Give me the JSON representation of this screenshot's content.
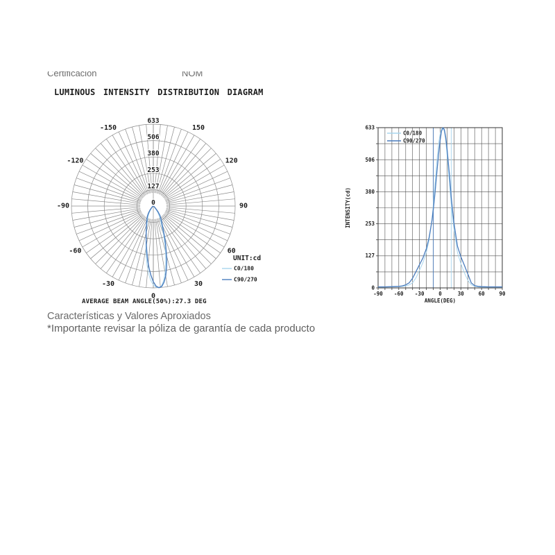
{
  "page": {
    "header_left": "Certificación",
    "header_right": "NOM",
    "title": "LUMINOUS INTENSITY DISTRIBUTION DIAGRAM",
    "footer_note_1": "Características y Valores Aproxiados",
    "footer_note_2": "*Importante revisar la póliza de garantía de cada producto"
  },
  "polar_chart": {
    "unit_label": "UNIT:cd",
    "annotation": "AVERAGE BEAM ANGLE(50%):27.3 DEG"
  },
  "colors": {
    "c0_180": "#a8d5ee",
    "c90_270": "#4a7cbd",
    "polar_grid": "#8a8a8a",
    "cart_grid": "#4f4f4f",
    "cart_border": "#333333",
    "chart_text": "#1c1c1c",
    "muted_text": "#6a6a6a"
  },
  "chart_data": [
    {
      "type": "polar-line",
      "title": "LUMINOUS INTENSITY DISTRIBUTION DIAGRAM",
      "unit": "cd",
      "orientation": "0 deg at bottom, positive angles to the right",
      "radial_ticks": [
        0,
        127,
        253,
        380,
        506,
        633
      ],
      "angle_tick_labels": [
        -150,
        -120,
        -90,
        -60,
        -30,
        0,
        30,
        60,
        90,
        120,
        150
      ],
      "angle_step_deg": 5,
      "annotation": "AVERAGE BEAM ANGLE(50%):27.3 DEG",
      "x_deg": [
        -90,
        -80,
        -70,
        -60,
        -55,
        -50,
        -45,
        -40,
        -35,
        -30,
        -25,
        -20,
        -16,
        -12,
        -10,
        -8,
        -6,
        -4,
        -2,
        0,
        2,
        4,
        6,
        8,
        10,
        12,
        14,
        16,
        18,
        20,
        25,
        30,
        35,
        40,
        45,
        50,
        55,
        60,
        70,
        80,
        90
      ],
      "series": [
        {
          "name": "C0/180",
          "color": "#a8d5ee",
          "values": [
            3,
            3,
            4,
            5,
            6,
            8,
            12,
            20,
            40,
            70,
            100,
            140,
            190,
            270,
            330,
            395,
            460,
            525,
            575,
            610,
            628,
            632,
            618,
            580,
            525,
            460,
            395,
            330,
            275,
            230,
            140,
            95,
            60,
            30,
            12,
            6,
            4,
            3,
            3,
            3,
            3
          ]
        },
        {
          "name": "C90/270",
          "color": "#4a7cbd",
          "values": [
            4,
            4,
            5,
            6,
            8,
            12,
            20,
            38,
            65,
            92,
            118,
            155,
            200,
            265,
            310,
            360,
            420,
            480,
            535,
            585,
            620,
            633,
            625,
            595,
            550,
            490,
            430,
            360,
            305,
            255,
            165,
            123,
            90,
            55,
            20,
            9,
            6,
            5,
            4,
            4,
            4
          ]
        }
      ]
    },
    {
      "type": "line",
      "xlabel": "ANGLE(DEG)",
      "ylabel": "INTENSITY(cd)",
      "xlim": [
        -90,
        90
      ],
      "ylim": [
        0,
        633
      ],
      "xticks": [
        -90,
        -60,
        -30,
        0,
        30,
        60,
        90
      ],
      "yticks": [
        0,
        127,
        253,
        380,
        506,
        633
      ],
      "x_grid_step": 10,
      "y_grid_divisions": 10,
      "grid": true,
      "legend_position": "top-left",
      "x": [
        -90,
        -80,
        -70,
        -60,
        -55,
        -50,
        -45,
        -40,
        -35,
        -30,
        -25,
        -20,
        -16,
        -12,
        -10,
        -8,
        -6,
        -4,
        -2,
        0,
        2,
        4,
        6,
        8,
        10,
        12,
        14,
        16,
        18,
        20,
        25,
        30,
        35,
        40,
        45,
        50,
        55,
        60,
        70,
        80,
        90
      ],
      "series": [
        {
          "name": "C0/180",
          "color": "#a8d5ee",
          "values": [
            3,
            3,
            4,
            5,
            6,
            8,
            12,
            20,
            40,
            70,
            100,
            140,
            190,
            270,
            330,
            395,
            460,
            525,
            575,
            610,
            628,
            632,
            618,
            580,
            525,
            460,
            395,
            330,
            275,
            230,
            140,
            95,
            60,
            30,
            12,
            6,
            4,
            3,
            3,
            3,
            3
          ]
        },
        {
          "name": "C90/270",
          "color": "#4a7cbd",
          "values": [
            4,
            4,
            5,
            6,
            8,
            12,
            20,
            38,
            65,
            92,
            118,
            155,
            200,
            265,
            310,
            360,
            420,
            480,
            535,
            585,
            620,
            633,
            625,
            595,
            550,
            490,
            430,
            360,
            305,
            255,
            165,
            123,
            90,
            55,
            20,
            9,
            6,
            5,
            4,
            4,
            4
          ]
        }
      ],
      "beam_markers": [
        {
          "x": -10,
          "color": "#4a7cbd"
        },
        {
          "x": 16,
          "color": "#a8d5ee"
        }
      ]
    }
  ]
}
